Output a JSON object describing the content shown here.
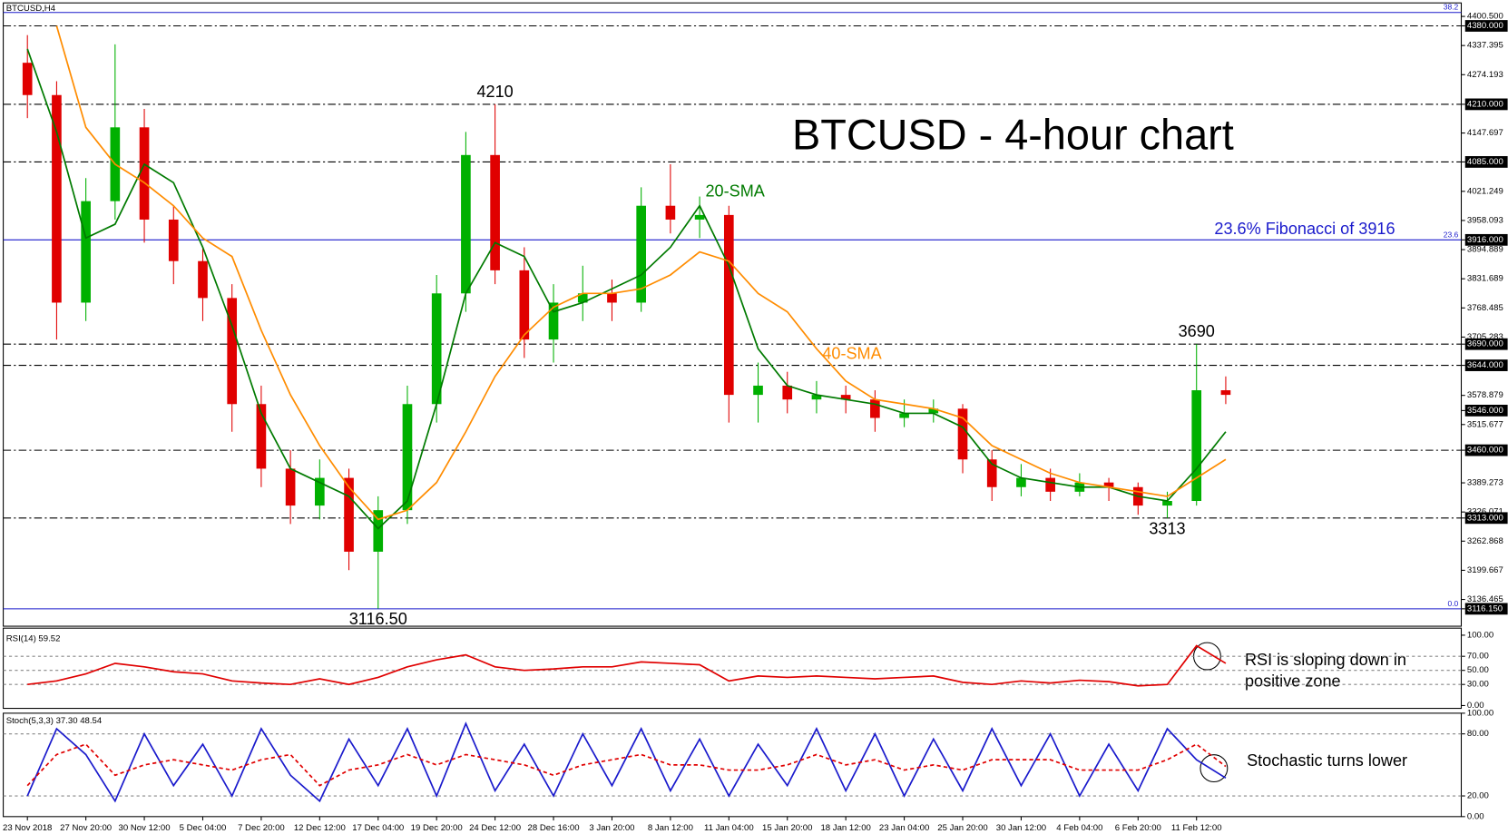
{
  "chart_data": [
    {
      "type": "candlestick",
      "title": "BTCUSD - 4-hour chart",
      "symbol": "BTCUSD,H4",
      "categories": [
        "23 Nov 2018",
        null,
        "27 Nov 20:00",
        null,
        "30 Nov 12:00",
        null,
        "5 Dec 04:00",
        null,
        "7 Dec 20:00",
        null,
        "12 Dec 12:00",
        null,
        "17 Dec 04:00",
        null,
        "19 Dec 20:00",
        null,
        "24 Dec 12:00",
        null,
        "28 Dec 16:00",
        null,
        "3 Jan 20:00",
        null,
        "8 Jan 12:00",
        null,
        "11 Jan 04:00",
        null,
        "15 Jan 20:00",
        null,
        "18 Jan 12:00",
        null,
        "23 Jan 04:00",
        null,
        "25 Jan 20:00",
        null,
        "30 Jan 12:00",
        null,
        "4 Feb 04:00",
        null,
        "6 Feb 20:00",
        null,
        "11 Feb 12:00",
        null
      ],
      "open": [
        4300,
        4230,
        3780,
        4000,
        4160,
        3960,
        3870,
        3790,
        3560,
        3420,
        3340,
        3400,
        3240,
        3330,
        3560,
        3800,
        4100,
        3850,
        3700,
        3780,
        3800,
        3780,
        3990,
        3960,
        3970,
        3580,
        3600,
        3570,
        3580,
        3570,
        3530,
        3540,
        3550,
        3440,
        3380,
        3400,
        3370,
        3390,
        3380,
        3340,
        3350,
        3590
      ],
      "high": [
        4360,
        4260,
        4050,
        4340,
        4200,
        3990,
        3900,
        3820,
        3600,
        3460,
        3440,
        3420,
        3360,
        3600,
        3840,
        4150,
        4210,
        3900,
        3820,
        3860,
        3830,
        4030,
        4080,
        4010,
        3990,
        3650,
        3630,
        3610,
        3600,
        3590,
        3570,
        3570,
        3560,
        3460,
        3430,
        3420,
        3410,
        3400,
        3390,
        3370,
        3690,
        3620
      ],
      "low": [
        4180,
        3700,
        3740,
        3960,
        3910,
        3820,
        3740,
        3500,
        3380,
        3300,
        3310,
        3200,
        3116.5,
        3300,
        3520,
        3760,
        3820,
        3660,
        3650,
        3740,
        3740,
        3760,
        3930,
        3920,
        3520,
        3520,
        3540,
        3540,
        3540,
        3500,
        3510,
        3520,
        3410,
        3350,
        3360,
        3350,
        3360,
        3350,
        3320,
        3313,
        3340,
        3560
      ],
      "close": [
        4230,
        3780,
        4000,
        4160,
        3960,
        3870,
        3790,
        3560,
        3420,
        3340,
        3400,
        3240,
        3330,
        3560,
        3800,
        4100,
        3850,
        3700,
        3780,
        3800,
        3780,
        3990,
        3960,
        3970,
        3580,
        3600,
        3570,
        3580,
        3570,
        3530,
        3540,
        3550,
        3440,
        3380,
        3400,
        3370,
        3390,
        3380,
        3340,
        3350,
        3590,
        3580
      ],
      "up_color": "#00b000",
      "down_color": "#e00000",
      "series": [
        {
          "name": "20-SMA",
          "color": "#007a00",
          "values": [
            4330,
            4150,
            3920,
            3950,
            4080,
            4040,
            3900,
            3730,
            3540,
            3420,
            3390,
            3360,
            3290,
            3350,
            3560,
            3800,
            3910,
            3880,
            3760,
            3780,
            3810,
            3840,
            3900,
            3990,
            3860,
            3680,
            3600,
            3580,
            3570,
            3560,
            3540,
            3540,
            3510,
            3430,
            3400,
            3390,
            3380,
            3380,
            3360,
            3350,
            3420,
            3500
          ]
        },
        {
          "name": "40-SMA",
          "color": "#ff8c00",
          "values": [
            null,
            4380,
            4160,
            4080,
            4040,
            3990,
            3920,
            3880,
            3720,
            3580,
            3470,
            3380,
            3310,
            3330,
            3390,
            3500,
            3620,
            3710,
            3770,
            3800,
            3800,
            3810,
            3840,
            3890,
            3870,
            3800,
            3760,
            3680,
            3610,
            3570,
            3560,
            3550,
            3530,
            3470,
            3440,
            3410,
            3390,
            3380,
            3370,
            3360,
            3400,
            3440
          ]
        }
      ],
      "ylim": [
        3078.4,
        4429.8
      ],
      "yticks": [
        {
          "value": 4400.5,
          "label": "4400.500"
        },
        {
          "value": 4380,
          "label": "4380.000"
        },
        {
          "value": 4337.395,
          "label": "4337.395"
        },
        {
          "value": 4274.193,
          "label": "4274.193"
        },
        {
          "value": 4210,
          "label": "4210.000"
        },
        {
          "value": 4147.697,
          "label": "4147.697"
        },
        {
          "value": 4085,
          "label": "4085.000"
        },
        {
          "value": 4021.249,
          "label": "4021.249"
        },
        {
          "value": 3958.093,
          "label": "3958.093"
        },
        {
          "value": 3916,
          "label": "3916.000"
        },
        {
          "value": 3894.889,
          "label": "3894.889"
        },
        {
          "value": 3831.689,
          "label": "3831.689"
        },
        {
          "value": 3768.485,
          "label": "3768.485"
        },
        {
          "value": 3705.283,
          "label": "3705.283"
        },
        {
          "value": 3690,
          "label": "3690.000"
        },
        {
          "value": 3644,
          "label": "3644.000"
        },
        {
          "value": 3578.879,
          "label": "3578.879"
        },
        {
          "value": 3546,
          "label": "3546.000"
        },
        {
          "value": 3515.677,
          "label": "3515.677"
        },
        {
          "value": 3460,
          "label": "3460.000"
        },
        {
          "value": 3389.273,
          "label": "3389.273"
        },
        {
          "value": 3326.071,
          "label": "3326.071"
        },
        {
          "value": 3313,
          "label": "3313.000"
        },
        {
          "value": 3262.868,
          "label": "3262.868"
        },
        {
          "value": 3199.667,
          "label": "3199.667"
        },
        {
          "value": 3136.465,
          "label": "3136.465"
        },
        {
          "value": 3116.15,
          "label": "3116.150"
        }
      ],
      "marked_levels": [
        4380,
        4210,
        4085,
        3916,
        3690,
        3644,
        3546,
        3460,
        3313,
        3116.15
      ],
      "dash_levels": [
        4380,
        4210,
        4085,
        3690,
        3644,
        3460,
        3313
      ],
      "fib_levels": [
        {
          "value": 4409,
          "label": "38.2"
        },
        {
          "value": 3916,
          "label": "23.6"
        },
        {
          "value": 3116.15,
          "label": "0.0"
        }
      ],
      "fib_color": "#1a1acc",
      "fib_note": "23.6% Fibonacci of 3916",
      "extremes": [
        {
          "text": "4210",
          "index": 16,
          "value": 4210,
          "position": "above"
        },
        {
          "text": "3116.50",
          "index": 12,
          "value": 3116.5,
          "position": "below"
        },
        {
          "text": "3690",
          "index": 40,
          "value": 3690,
          "position": "above"
        },
        {
          "text": "3313",
          "index": 39,
          "value": 3313,
          "position": "below"
        }
      ]
    },
    {
      "type": "line",
      "title": "RSI(14) 59.52",
      "color": "#e00000",
      "values": [
        30,
        35,
        45,
        60,
        55,
        48,
        45,
        35,
        32,
        30,
        38,
        30,
        40,
        55,
        65,
        72,
        55,
        50,
        52,
        55,
        55,
        62,
        60,
        58,
        35,
        42,
        40,
        42,
        40,
        38,
        40,
        42,
        33,
        30,
        35,
        32,
        36,
        34,
        28,
        30,
        85,
        60
      ],
      "ylim": [
        -4,
        110
      ],
      "yticks": [
        {
          "value": 100,
          "label": "100.00"
        },
        {
          "value": 70,
          "label": "70.00"
        },
        {
          "value": 50,
          "label": "50.00"
        },
        {
          "value": 30,
          "label": "30.00"
        },
        {
          "value": 0,
          "label": "0.00"
        }
      ],
      "levels": [
        70,
        50,
        30
      ],
      "note": [
        "RSI is sloping down in",
        "positive zone"
      ]
    },
    {
      "type": "line",
      "title": "Stoch(5,3,3) 37.30 48.54",
      "series": [
        {
          "color": "#1a1acc",
          "dashed": false,
          "values": [
            20,
            85,
            60,
            15,
            80,
            30,
            70,
            20,
            85,
            40,
            15,
            75,
            30,
            85,
            20,
            90,
            25,
            70,
            20,
            80,
            30,
            85,
            25,
            75,
            20,
            70,
            30,
            85,
            25,
            80,
            20,
            75,
            25,
            85,
            30,
            80,
            20,
            70,
            25,
            85,
            55,
            37.3
          ]
        },
        {
          "color": "#e00000",
          "dashed": true,
          "values": [
            30,
            60,
            70,
            40,
            50,
            55,
            50,
            45,
            55,
            60,
            30,
            45,
            50,
            60,
            50,
            60,
            55,
            50,
            40,
            50,
            55,
            60,
            50,
            50,
            45,
            45,
            50,
            60,
            50,
            55,
            45,
            50,
            45,
            55,
            55,
            55,
            45,
            45,
            45,
            55,
            70,
            48.54
          ]
        }
      ],
      "ylim": [
        0,
        100
      ],
      "yticks": [
        {
          "value": 100,
          "label": "100.00"
        },
        {
          "value": 80,
          "label": "80.00"
        },
        {
          "value": 20,
          "label": "20.00"
        },
        {
          "value": 0,
          "label": "0.00"
        }
      ],
      "levels": [
        80,
        20
      ],
      "note": [
        "Stochastic turns lower"
      ]
    }
  ]
}
